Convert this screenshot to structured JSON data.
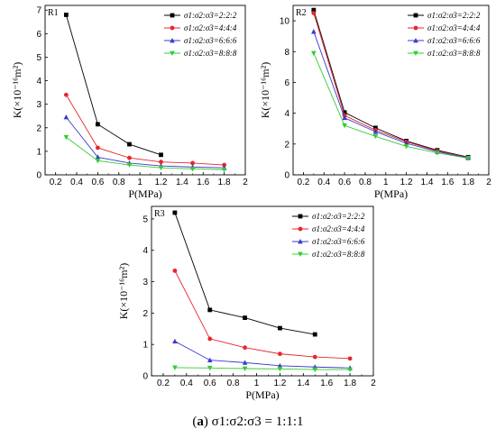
{
  "caption": {
    "tag": "a",
    "text": "σ1:σ2:σ3 = 1:1:1"
  },
  "chart_data": [
    {
      "type": "line",
      "panel_label": "R1",
      "xlabel": "P(MPa)",
      "ylabel": "K(×10⁻¹⁶m²)",
      "xlim": [
        0.1,
        2.0
      ],
      "ylim": [
        0,
        7.2
      ],
      "xticks": [
        0.2,
        0.4,
        0.6,
        0.8,
        1.0,
        1.2,
        1.4,
        1.6,
        1.8,
        2.0
      ],
      "yticks": [
        0,
        1,
        2,
        3,
        4,
        5,
        6,
        7
      ],
      "legend_position": "top-right",
      "series": [
        {
          "name": "σ1:σ2:σ3=2:2:2",
          "color": "#000000",
          "marker": "square",
          "x": [
            0.3,
            0.6,
            0.9,
            1.2
          ],
          "y": [
            6.8,
            2.15,
            1.3,
            0.85
          ]
        },
        {
          "name": "σ1:σ2:σ3=4:4:4",
          "color": "#e8262b",
          "marker": "circle",
          "x": [
            0.3,
            0.6,
            0.9,
            1.2,
            1.5,
            1.8
          ],
          "y": [
            3.4,
            1.15,
            0.72,
            0.55,
            0.5,
            0.42
          ]
        },
        {
          "name": "σ1:σ2:σ3=6:6:6",
          "color": "#3a3acf",
          "marker": "triangle",
          "x": [
            0.3,
            0.6,
            0.9,
            1.2,
            1.5,
            1.8
          ],
          "y": [
            2.45,
            0.75,
            0.5,
            0.38,
            0.33,
            0.3
          ]
        },
        {
          "name": "σ1:σ2:σ3=8:8:8",
          "color": "#33cc33",
          "marker": "triangle-down",
          "x": [
            0.3,
            0.6,
            0.9,
            1.2,
            1.5,
            1.8
          ],
          "y": [
            1.6,
            0.6,
            0.42,
            0.3,
            0.25,
            0.22
          ]
        }
      ]
    },
    {
      "type": "line",
      "panel_label": "R2",
      "xlabel": "P(MPa)",
      "ylabel": "K(×10⁻¹⁶m²)",
      "xlim": [
        0.1,
        2.0
      ],
      "ylim": [
        0,
        11
      ],
      "xticks": [
        0.2,
        0.4,
        0.6,
        0.8,
        1.0,
        1.2,
        1.4,
        1.6,
        1.8,
        2.0
      ],
      "yticks": [
        0,
        2,
        4,
        6,
        8,
        10
      ],
      "legend_position": "top-right",
      "series": [
        {
          "name": "σ1:σ2:σ3=2:2:2",
          "color": "#000000",
          "marker": "square",
          "x": [
            0.3,
            0.6,
            0.9,
            1.2,
            1.5,
            1.8
          ],
          "y": [
            10.7,
            4.05,
            3.05,
            2.2,
            1.6,
            1.15
          ]
        },
        {
          "name": "σ1:σ2:σ3=4:4:4",
          "color": "#e8262b",
          "marker": "circle",
          "x": [
            0.3,
            0.6,
            0.9,
            1.2,
            1.5,
            1.8
          ],
          "y": [
            10.5,
            3.85,
            2.9,
            2.15,
            1.55,
            1.12
          ]
        },
        {
          "name": "σ1:σ2:σ3=6:6:6",
          "color": "#3a3acf",
          "marker": "triangle",
          "x": [
            0.3,
            0.6,
            0.9,
            1.2,
            1.5,
            1.8
          ],
          "y": [
            9.3,
            3.7,
            2.8,
            2.05,
            1.5,
            1.1
          ]
        },
        {
          "name": "σ1:σ2:σ3=8:8:8",
          "color": "#33cc33",
          "marker": "triangle-down",
          "x": [
            0.3,
            0.6,
            0.9,
            1.2,
            1.5,
            1.8
          ],
          "y": [
            7.9,
            3.2,
            2.5,
            1.85,
            1.42,
            1.08
          ]
        }
      ]
    },
    {
      "type": "line",
      "panel_label": "R3",
      "xlabel": "P(MPa)",
      "ylabel": "K(×10⁻¹⁶m²)",
      "xlim": [
        0.1,
        2.0
      ],
      "ylim": [
        0,
        5.4
      ],
      "xticks": [
        0.2,
        0.4,
        0.6,
        0.8,
        1.0,
        1.2,
        1.4,
        1.6,
        1.8,
        2.0
      ],
      "yticks": [
        0,
        1,
        2,
        3,
        4,
        5
      ],
      "legend_position": "top-right",
      "series": [
        {
          "name": "σ1:σ2:σ3=2:2:2",
          "color": "#000000",
          "marker": "square",
          "x": [
            0.3,
            0.6,
            0.9,
            1.2,
            1.5
          ],
          "y": [
            5.2,
            2.1,
            1.85,
            1.52,
            1.32
          ]
        },
        {
          "name": "σ1:σ2:σ3=4:4:4",
          "color": "#e8262b",
          "marker": "circle",
          "x": [
            0.3,
            0.6,
            0.9,
            1.2,
            1.5,
            1.8
          ],
          "y": [
            3.35,
            1.18,
            0.9,
            0.7,
            0.6,
            0.55
          ]
        },
        {
          "name": "σ1:σ2:σ3=6:6:6",
          "color": "#3a3acf",
          "marker": "triangle",
          "x": [
            0.3,
            0.6,
            0.9,
            1.2,
            1.5,
            1.8
          ],
          "y": [
            1.1,
            0.5,
            0.42,
            0.32,
            0.28,
            0.25
          ]
        },
        {
          "name": "σ1:σ2:σ3=8:8:8",
          "color": "#33cc33",
          "marker": "triangle-down",
          "x": [
            0.3,
            0.6,
            0.9,
            1.2,
            1.5,
            1.8
          ],
          "y": [
            0.26,
            0.25,
            0.23,
            0.22,
            0.2,
            0.2
          ]
        }
      ]
    }
  ]
}
